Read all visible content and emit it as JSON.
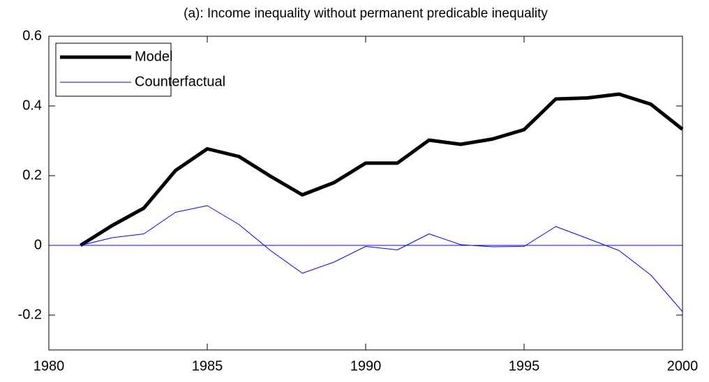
{
  "chart_data": {
    "type": "line",
    "title": "(a): Income inequality without permanent predicable inequality",
    "x": [
      1981,
      1982,
      1983,
      1984,
      1985,
      1986,
      1987,
      1988,
      1989,
      1990,
      1991,
      1992,
      1993,
      1994,
      1995,
      1996,
      1997,
      1998,
      1999,
      2000
    ],
    "series": [
      {
        "name": "Model",
        "color": "#000000",
        "width": 5,
        "values": [
          0,
          0.057,
          0.107,
          0.215,
          0.277,
          0.255,
          0.198,
          0.145,
          0.18,
          0.236,
          0.236,
          0.302,
          0.29,
          0.305,
          0.332,
          0.42,
          0.423,
          0.434,
          0.405,
          0.333
        ]
      },
      {
        "name": "Counterfactual",
        "color": "#0000ff",
        "width": 1,
        "values": [
          0,
          0.022,
          0.033,
          0.095,
          0.114,
          0.06,
          -0.015,
          -0.08,
          -0.048,
          -0.003,
          -0.013,
          0.033,
          0.002,
          -0.004,
          -0.003,
          0.054,
          0.02,
          -0.015,
          -0.085,
          -0.19
        ]
      }
    ],
    "hline": {
      "value": 0,
      "color": "#0000ff"
    },
    "xlim": [
      1980,
      2000
    ],
    "xticks": [
      1980,
      1985,
      1990,
      1995,
      2000
    ],
    "ylim": [
      -0.3,
      0.6
    ],
    "yticks": [
      -0.2,
      0,
      0.2,
      0.4,
      0.6
    ],
    "legend": "top-left",
    "grid": false
  }
}
